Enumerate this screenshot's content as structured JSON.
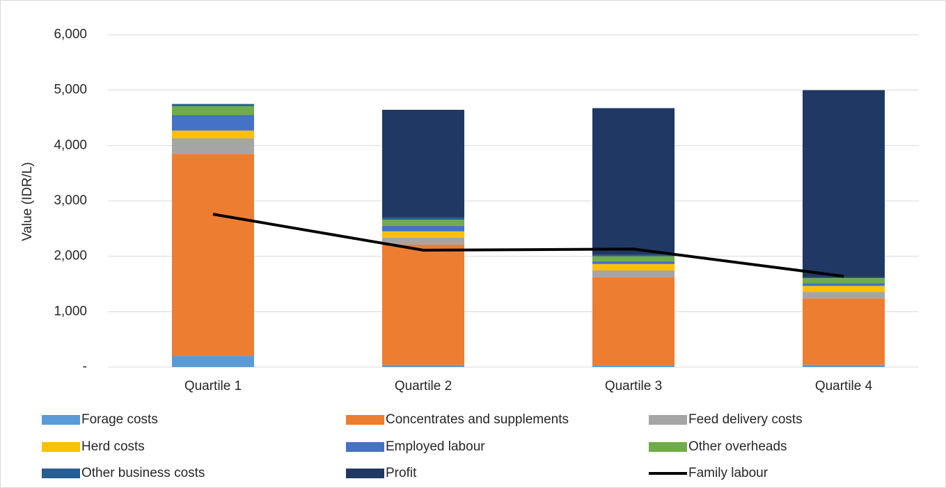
{
  "chart_data": {
    "type": "bar",
    "stacked": true,
    "y_label": "Value (IDR/L)",
    "categories": [
      "Quartile 1",
      "Quartile 2",
      "Quartile 3",
      "Quartile 4"
    ],
    "ylim": [
      0,
      6000
    ],
    "yticks": [
      {
        "value": 0,
        "label": "-"
      },
      {
        "value": 1000,
        "label": "1,000"
      },
      {
        "value": 2000,
        "label": "2,000"
      },
      {
        "value": 3000,
        "label": "3,000"
      },
      {
        "value": 4000,
        "label": "4,000"
      },
      {
        "value": 5000,
        "label": "5,000"
      },
      {
        "value": 6000,
        "label": "6,000"
      }
    ],
    "grid": true,
    "legend": "bottom",
    "series": [
      {
        "name": "Forage costs",
        "color": "#5b9bd5",
        "values": [
          200,
          40,
          30,
          40
        ]
      },
      {
        "name": "Concentrates and supplements",
        "color": "#ed7d31",
        "values": [
          3650,
          2170,
          1590,
          1200
        ]
      },
      {
        "name": "Feed delivery costs",
        "color": "#a5a5a5",
        "values": [
          280,
          125,
          125,
          115
        ]
      },
      {
        "name": "Herd costs",
        "color": "#ffc000",
        "values": [
          140,
          115,
          115,
          110
        ]
      },
      {
        "name": "Employed labour",
        "color": "#4472c4",
        "values": [
          280,
          100,
          50,
          50
        ]
      },
      {
        "name": "Other overheads",
        "color": "#70ad47",
        "values": [
          160,
          110,
          90,
          90
        ]
      },
      {
        "name": "Other business costs",
        "color": "#255e91",
        "values": [
          40,
          40,
          25,
          15
        ]
      },
      {
        "name": "Profit",
        "color": "#203864",
        "values": [
          0,
          1945,
          2650,
          3380
        ]
      },
      {
        "name": "Family labour",
        "color": "#000000",
        "type": "line",
        "values": [
          2760,
          2110,
          2130,
          1640
        ]
      }
    ]
  }
}
